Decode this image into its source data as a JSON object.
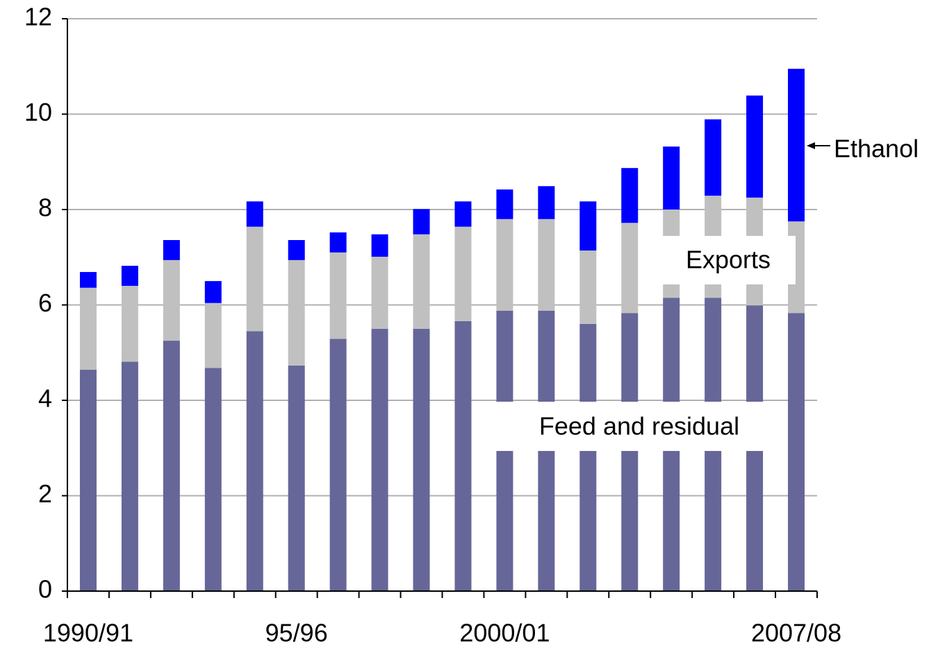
{
  "chart_data": {
    "type": "stacked-bar",
    "categories": [
      "1990/91",
      null,
      null,
      null,
      null,
      "95/96",
      null,
      null,
      null,
      null,
      "2000/01",
      null,
      null,
      null,
      null,
      null,
      null,
      "2007/08"
    ],
    "series": [
      {
        "name": "Feed and residual",
        "color": "#666699",
        "values": [
          4.64,
          4.81,
          5.25,
          4.68,
          5.45,
          4.73,
          5.29,
          5.5,
          5.5,
          5.66,
          5.88,
          5.88,
          5.6,
          5.83,
          6.15,
          6.15,
          5.99,
          5.83
        ]
      },
      {
        "name": "Exports",
        "color": "#c0c0c0",
        "values": [
          1.72,
          1.59,
          1.69,
          1.36,
          2.19,
          2.21,
          1.81,
          1.51,
          1.98,
          1.98,
          1.92,
          1.92,
          1.54,
          1.89,
          1.85,
          2.14,
          2.26,
          1.92
        ]
      },
      {
        "name": "Ethanol",
        "color": "#0000ff",
        "values": [
          0.33,
          0.42,
          0.42,
          0.46,
          0.53,
          0.42,
          0.42,
          0.47,
          0.53,
          0.53,
          0.62,
          0.69,
          1.03,
          1.15,
          1.32,
          1.6,
          2.14,
          3.2
        ]
      }
    ],
    "ylim": [
      0,
      12
    ],
    "yticks": [
      0,
      2,
      4,
      6,
      8,
      10,
      12
    ],
    "grid": true
  }
}
